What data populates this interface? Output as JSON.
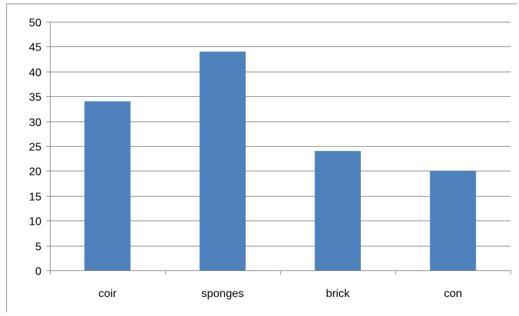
{
  "chart_data": {
    "type": "bar",
    "categories": [
      "coir",
      "sponges",
      "brick",
      "con"
    ],
    "values": [
      34,
      44,
      24,
      20
    ],
    "title": "",
    "xlabel": "",
    "ylabel": "",
    "ylim": [
      0,
      50
    ],
    "ytick_step": 5,
    "grid": true,
    "legend": "none",
    "bar_color": "#4F81BD",
    "grid_color": "#8C8C8C",
    "axis_color": "#8C8C8C"
  }
}
